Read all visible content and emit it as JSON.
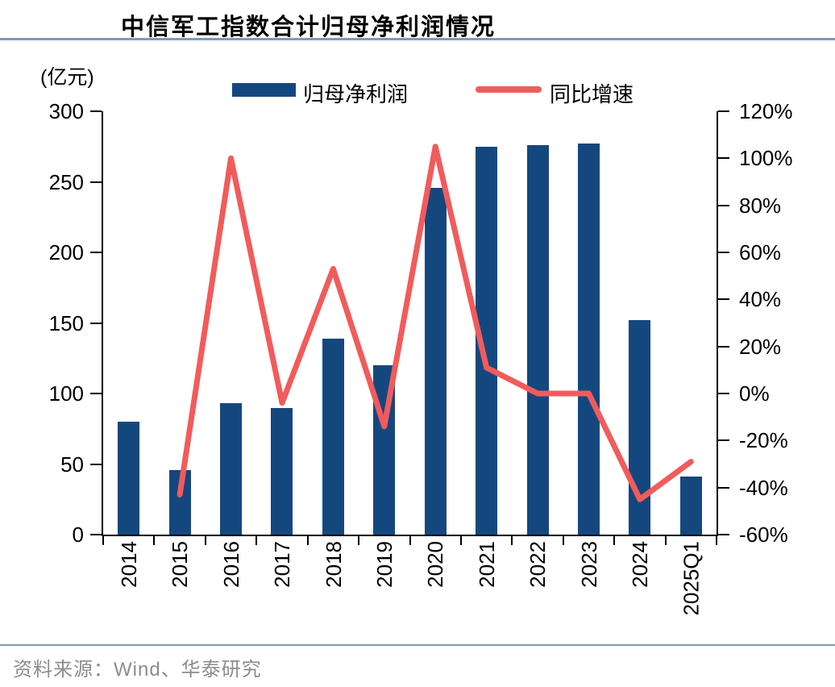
{
  "title": "中信军工指数合计归母净利润情况",
  "source": "资料来源：Wind、华泰研究",
  "axis_left_unit": "(亿元)",
  "legend": {
    "bar_label": "归母净利润",
    "line_label": "同比增速"
  },
  "colors": {
    "bar": "#15477F",
    "line": "#F25B5B",
    "rule": "#7C9CB8",
    "axis": "#000000",
    "source_text": "#8C8C8C"
  },
  "chart_data": {
    "type": "bar",
    "subtype": "bar+line combo, dual axis",
    "title": "中信军工指数合计归母净利润情况",
    "categories": [
      "2014",
      "2015",
      "2016",
      "2017",
      "2018",
      "2019",
      "2020",
      "2021",
      "2022",
      "2023",
      "2024",
      "2025Q1"
    ],
    "series": [
      {
        "name": "归母净利润",
        "type": "bar",
        "axis": "left",
        "unit": "亿元",
        "values": [
          80,
          46,
          93,
          90,
          139,
          120,
          246,
          275,
          276,
          277,
          152,
          41
        ]
      },
      {
        "name": "同比增速",
        "type": "line",
        "axis": "right",
        "unit": "%",
        "values": [
          null,
          -43,
          100,
          -4,
          53,
          -14,
          105,
          11,
          0,
          0,
          -45,
          -29
        ]
      }
    ],
    "left_axis": {
      "label": "(亿元)",
      "min": 0,
      "max": 300,
      "tick_step": 50,
      "ticks": [
        0,
        50,
        100,
        150,
        200,
        250,
        300
      ]
    },
    "right_axis": {
      "min": -60,
      "max": 120,
      "tick_step": 20,
      "format": "percent",
      "ticks": [
        "-60%",
        "-40%",
        "-20%",
        "0%",
        "20%",
        "40%",
        "60%",
        "80%",
        "100%",
        "120%"
      ]
    },
    "grid": false,
    "legend_position": "top",
    "x_label_rotation": -90
  }
}
